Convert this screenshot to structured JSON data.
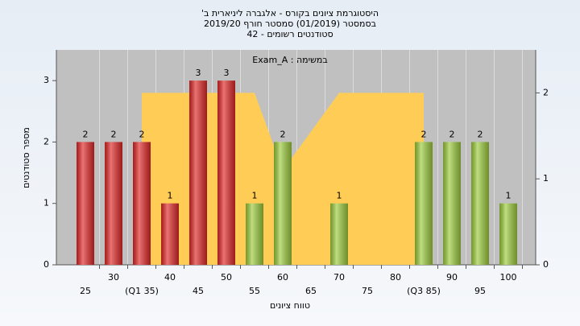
{
  "chart_data": {
    "type": "bar",
    "title_lines": [
      "היסטוגרמת ציונים בקורס - אלגברה ליניארית ב'",
      "בסמסטר (01/2019) סמסטר חורף 2019/20",
      "סטודנטים רשומים - 42"
    ],
    "annotation": "במשימה : Exam_A",
    "x_label": "טווח ציונים",
    "y_label": "מספר סטודנטים",
    "categories": [
      "25",
      "30",
      "(Q1 35)",
      "40",
      "45",
      "50",
      "55",
      "60",
      "65",
      "70",
      "75",
      "80",
      "(Q3 85)",
      "90",
      "95",
      "100"
    ],
    "series": [
      {
        "type": "area",
        "axis": "y2",
        "color": "#ffcc55",
        "values": [
          null,
          null,
          2,
          2,
          2,
          2,
          2,
          1.1,
          1.55,
          2,
          2,
          2,
          2,
          null,
          null,
          null
        ]
      },
      {
        "type": "bar",
        "values": [
          2,
          2,
          2,
          1,
          3,
          3,
          1,
          2,
          0,
          1,
          0,
          0,
          2,
          2,
          2,
          1
        ],
        "colors": [
          "#e02828",
          "#e02828",
          "#e02828",
          "#e02828",
          "#e02828",
          "#e02828",
          "#9ccc3c",
          "#9ccc3c",
          "#9ccc3c",
          "#9ccc3c",
          "#9ccc3c",
          "#9ccc3c",
          "#9ccc3c",
          "#9ccc3c",
          "#9ccc3c",
          "#9ccc3c"
        ]
      }
    ],
    "ylim": [
      0,
      3.5
    ],
    "yticks": [
      0,
      1,
      2,
      3
    ],
    "y2lim": [
      0,
      2.5
    ],
    "y2ticks": [
      0,
      1,
      2
    ]
  }
}
